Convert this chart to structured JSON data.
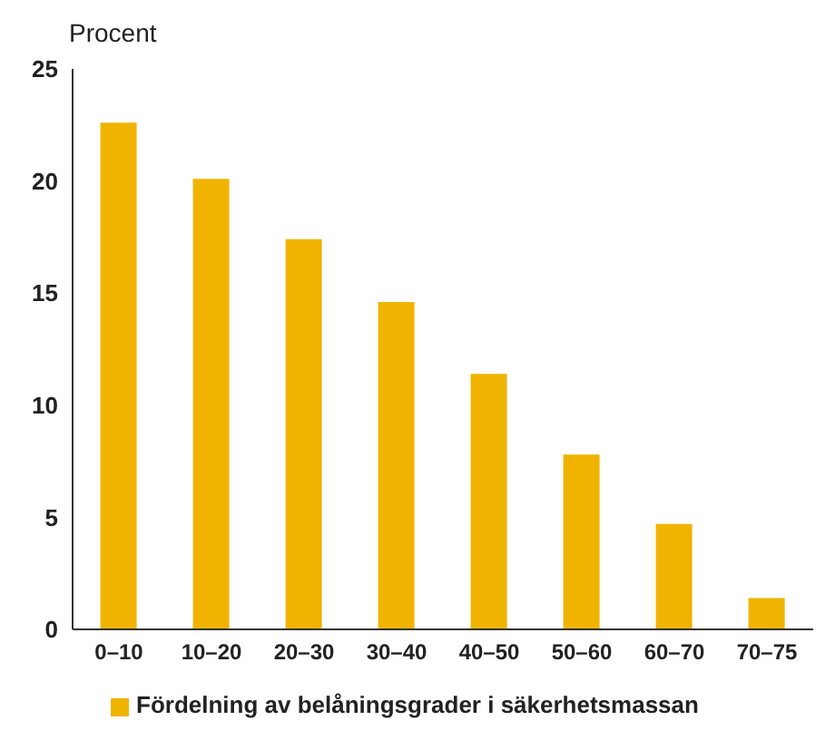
{
  "chart_data": {
    "type": "bar",
    "ylabel": "Procent",
    "categories": [
      "0–10",
      "10–20",
      "20–30",
      "30–40",
      "40–50",
      "50–60",
      "60–70",
      "70–75"
    ],
    "series": [
      {
        "name": "Fördelning av belåningsgrader i säkerhetsmassan",
        "color": "#f0b400",
        "values": [
          22.6,
          20.1,
          17.4,
          14.6,
          11.4,
          7.8,
          4.7,
          1.4
        ]
      }
    ],
    "ylim": [
      0,
      25
    ],
    "yticks": [
      0,
      5,
      10,
      15,
      20,
      25
    ],
    "grid": false,
    "legend": "bottom"
  }
}
